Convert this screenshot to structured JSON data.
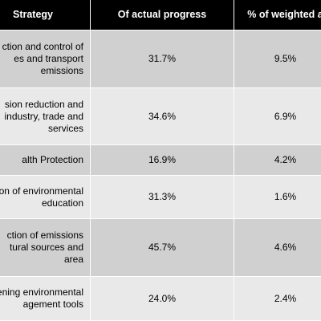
{
  "table": {
    "header": [
      "Strategy",
      "Of actual progress",
      "% of weighted a"
    ],
    "rows": [
      [
        [
          "ction and control of",
          "es and transport",
          "emissions"
        ],
        "31.7%",
        "9.5%"
      ],
      [
        [
          "sion reduction and",
          "industry, trade and",
          "services"
        ],
        "34.6%",
        "6.9%"
      ],
      [
        [
          "alth Protection"
        ],
        "16.9%",
        "4.2%"
      ],
      [
        [
          "ion of environmental",
          "education"
        ],
        "31.3%",
        "1.6%"
      ],
      [
        [
          "ction of emissions",
          "tural sources and",
          "area"
        ],
        "45.7%",
        "4.6%"
      ],
      [
        [
          "ening environmental",
          "agement tools"
        ],
        "24.0%",
        "2.4%"
      ]
    ]
  }
}
